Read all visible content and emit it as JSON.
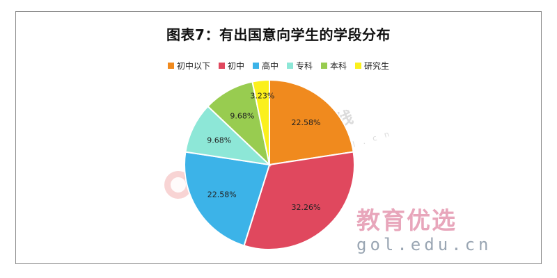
{
  "chart_data": {
    "type": "pie",
    "title": "图表7：有出国意向学生的学段分布",
    "categories": [
      "初中以下",
      "初中",
      "高中",
      "专科",
      "本科",
      "研究生"
    ],
    "values": [
      22.58,
      32.26,
      22.58,
      9.68,
      9.68,
      3.23
    ],
    "labels": [
      "22.58%",
      "32.26%",
      "22.58%",
      "9.68%",
      "9.68%",
      "3.23%"
    ],
    "colors": [
      "#f08a1e",
      "#e0485e",
      "#3cb3e8",
      "#8de7d7",
      "#98cc50",
      "#fbf01c"
    ],
    "legend_position": "top"
  },
  "watermarks": {
    "stamp_text": "中国教育在线",
    "stamp_url": "w w w . g o l . c n",
    "brand_text": "教育优选",
    "brand_url": "gol.edu.cn"
  }
}
